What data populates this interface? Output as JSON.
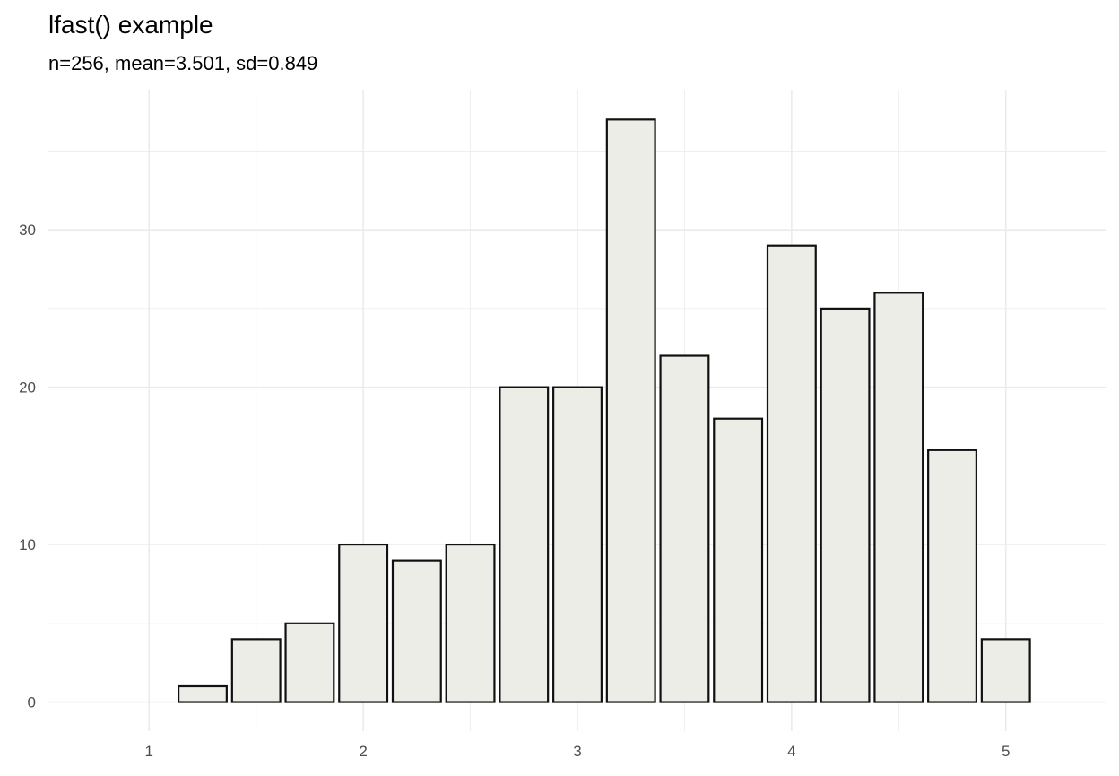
{
  "chart_data": {
    "type": "bar",
    "title": "lfast() example",
    "subtitle": "n=256, mean=3.501, sd=0.849",
    "xlabel": "",
    "ylabel": "",
    "x": [
      1.25,
      1.5,
      1.75,
      2.0,
      2.25,
      2.5,
      2.75,
      3.0,
      3.25,
      3.5,
      3.75,
      4.0,
      4.25,
      4.5,
      4.75,
      5.0
    ],
    "values": [
      1,
      4,
      5,
      10,
      9,
      10,
      20,
      20,
      37,
      22,
      18,
      29,
      25,
      26,
      16,
      4
    ],
    "bin_width": 0.25,
    "bar_width_fraction": 0.9,
    "xlim": [
      0.53,
      5.47
    ],
    "ylim": [
      -1.85,
      38.9
    ],
    "xticks": [
      "1",
      "2",
      "3",
      "4",
      "5"
    ],
    "yticks": [
      "0",
      "10",
      "20",
      "30"
    ],
    "grid": true,
    "colors": {
      "fill": "#ECEDE7",
      "stroke": "#111111",
      "grid": "#EBEBEB",
      "tick_text": "#4D4D4D"
    }
  }
}
